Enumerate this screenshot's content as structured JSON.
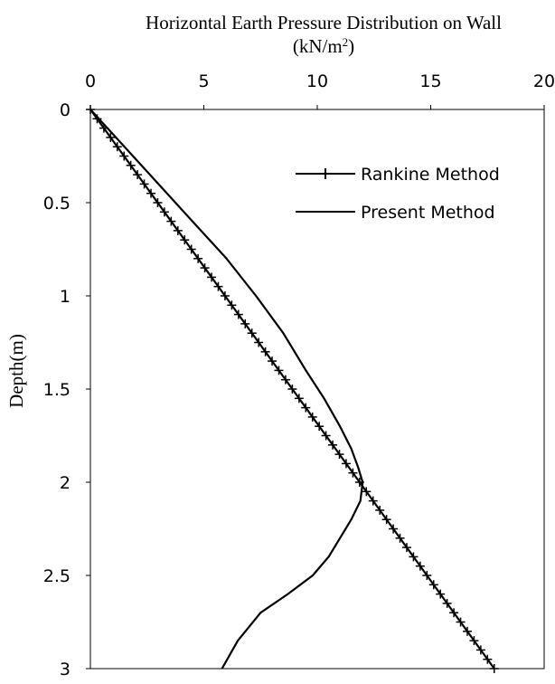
{
  "chart_data": {
    "type": "line",
    "title": "Horizontal Earth Pressure Distribution on Wall",
    "subtitle_main": "(kN/m",
    "subtitle_sup": "2",
    "subtitle_tail": ")",
    "xlabel": "",
    "ylabel": "Depth(m)",
    "x_axis_position": "top",
    "y_axis_inverted": true,
    "xlim": [
      0,
      20
    ],
    "ylim": [
      0,
      3
    ],
    "x_ticks": [
      "0",
      "5",
      "10",
      "15",
      "20"
    ],
    "y_ticks": [
      "0",
      "0.5",
      "1",
      "1.5",
      "2",
      "2.5",
      "3"
    ],
    "grid": false,
    "legend_position": "top-right",
    "series": [
      {
        "name": "Rankine Method",
        "marker": "plus",
        "color": "#000000",
        "x": [
          0,
          17.8
        ],
        "y": [
          0,
          3.0
        ],
        "marker_count": 60
      },
      {
        "name": "Present Method",
        "marker": "none",
        "color": "#000000",
        "x": [
          0.0,
          1.5,
          3.0,
          4.5,
          6.0,
          7.3,
          8.5,
          9.5,
          10.3,
          11.0,
          11.5,
          11.8,
          12.0,
          11.9,
          11.5,
          11.0,
          10.5,
          9.8,
          8.7,
          7.5,
          6.5,
          5.8
        ],
        "y": [
          0.0,
          0.2,
          0.4,
          0.6,
          0.8,
          1.0,
          1.2,
          1.4,
          1.55,
          1.7,
          1.82,
          1.92,
          2.0,
          2.1,
          2.2,
          2.3,
          2.4,
          2.5,
          2.6,
          2.7,
          2.85,
          3.0
        ]
      }
    ]
  }
}
